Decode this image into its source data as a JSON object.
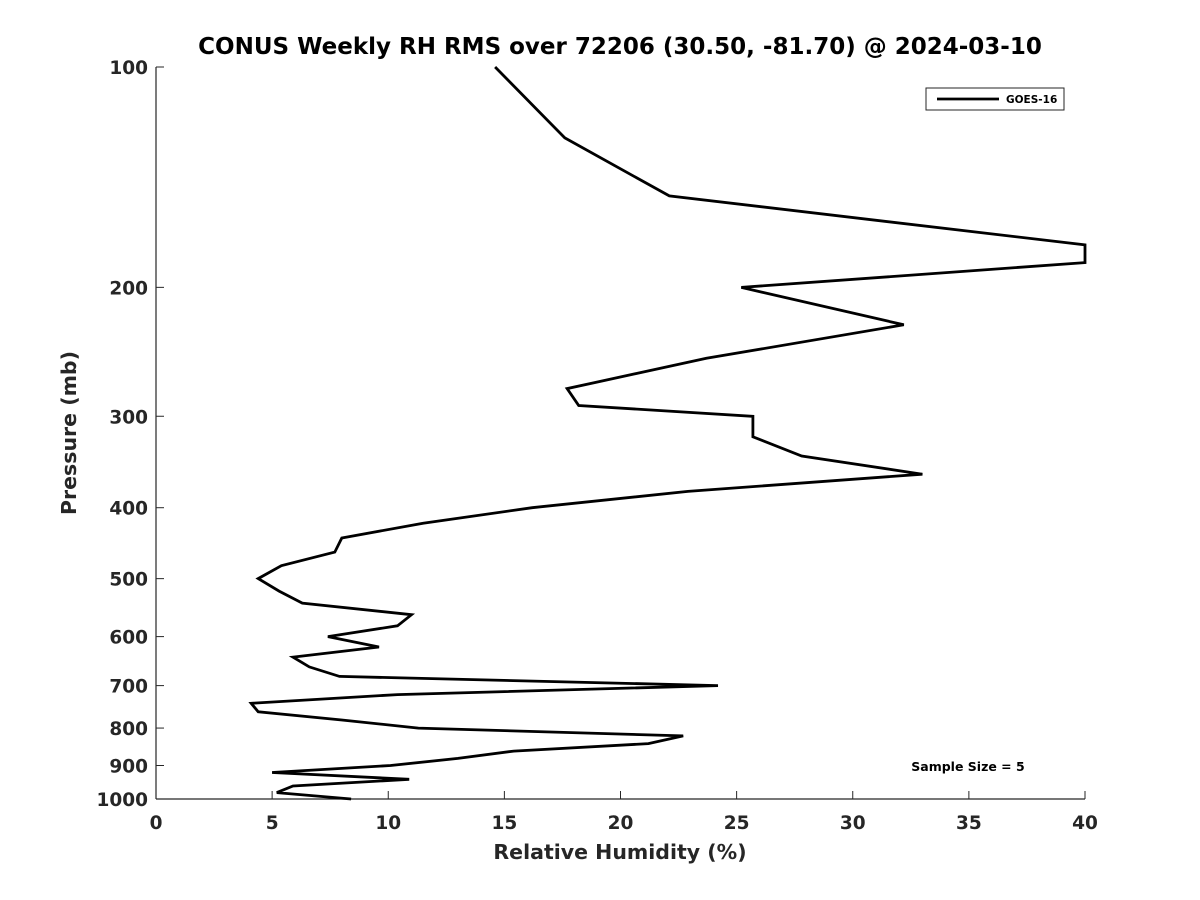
{
  "chart_data": {
    "type": "line",
    "title": "CONUS Weekly RH RMS over 72206 (30.50, -81.70) @ 2024-03-10",
    "xlabel": "Relative Humidity (%)",
    "ylabel": "Pressure (mb)",
    "xlim": [
      0,
      40
    ],
    "ylim": [
      100,
      1000
    ],
    "y_scale": "log",
    "y_reversed": true,
    "xticks": [
      "0",
      "5",
      "10",
      "15",
      "20",
      "25",
      "30",
      "35",
      "40"
    ],
    "yticks": [
      "100",
      "200",
      "300",
      "400",
      "500",
      "600",
      "700",
      "800",
      "900",
      "1000"
    ],
    "grid": false,
    "legend_position": "top-right",
    "annotation": "Sample Size = 5",
    "series": [
      {
        "name": "GOES-16",
        "color": "#000000",
        "points": [
          [
            14.6,
            100
          ],
          [
            17.6,
            125
          ],
          [
            22.1,
            150
          ],
          [
            40.0,
            175
          ],
          [
            40.0,
            185
          ],
          [
            25.2,
            200
          ],
          [
            32.2,
            225
          ],
          [
            23.7,
            250
          ],
          [
            17.7,
            275
          ],
          [
            18.2,
            290
          ],
          [
            25.7,
            300
          ],
          [
            25.7,
            320
          ],
          [
            27.8,
            340
          ],
          [
            33.0,
            360
          ],
          [
            22.9,
            380
          ],
          [
            16.2,
            400
          ],
          [
            11.5,
            420
          ],
          [
            8.0,
            440
          ],
          [
            7.7,
            460
          ],
          [
            5.4,
            480
          ],
          [
            4.4,
            500
          ],
          [
            5.3,
            520
          ],
          [
            6.3,
            540
          ],
          [
            11.0,
            560
          ],
          [
            10.4,
            580
          ],
          [
            7.4,
            600
          ],
          [
            9.6,
            620
          ],
          [
            5.9,
            640
          ],
          [
            6.6,
            660
          ],
          [
            7.9,
            680
          ],
          [
            24.2,
            700
          ],
          [
            10.4,
            720
          ],
          [
            4.1,
            740
          ],
          [
            4.4,
            760
          ],
          [
            8.0,
            780
          ],
          [
            11.3,
            800
          ],
          [
            22.7,
            820
          ],
          [
            21.2,
            840
          ],
          [
            15.4,
            860
          ],
          [
            13.0,
            880
          ],
          [
            10.1,
            900
          ],
          [
            5.0,
            920
          ],
          [
            10.9,
            940
          ],
          [
            5.9,
            960
          ],
          [
            5.2,
            980
          ],
          [
            8.4,
            1000
          ]
        ]
      }
    ]
  }
}
